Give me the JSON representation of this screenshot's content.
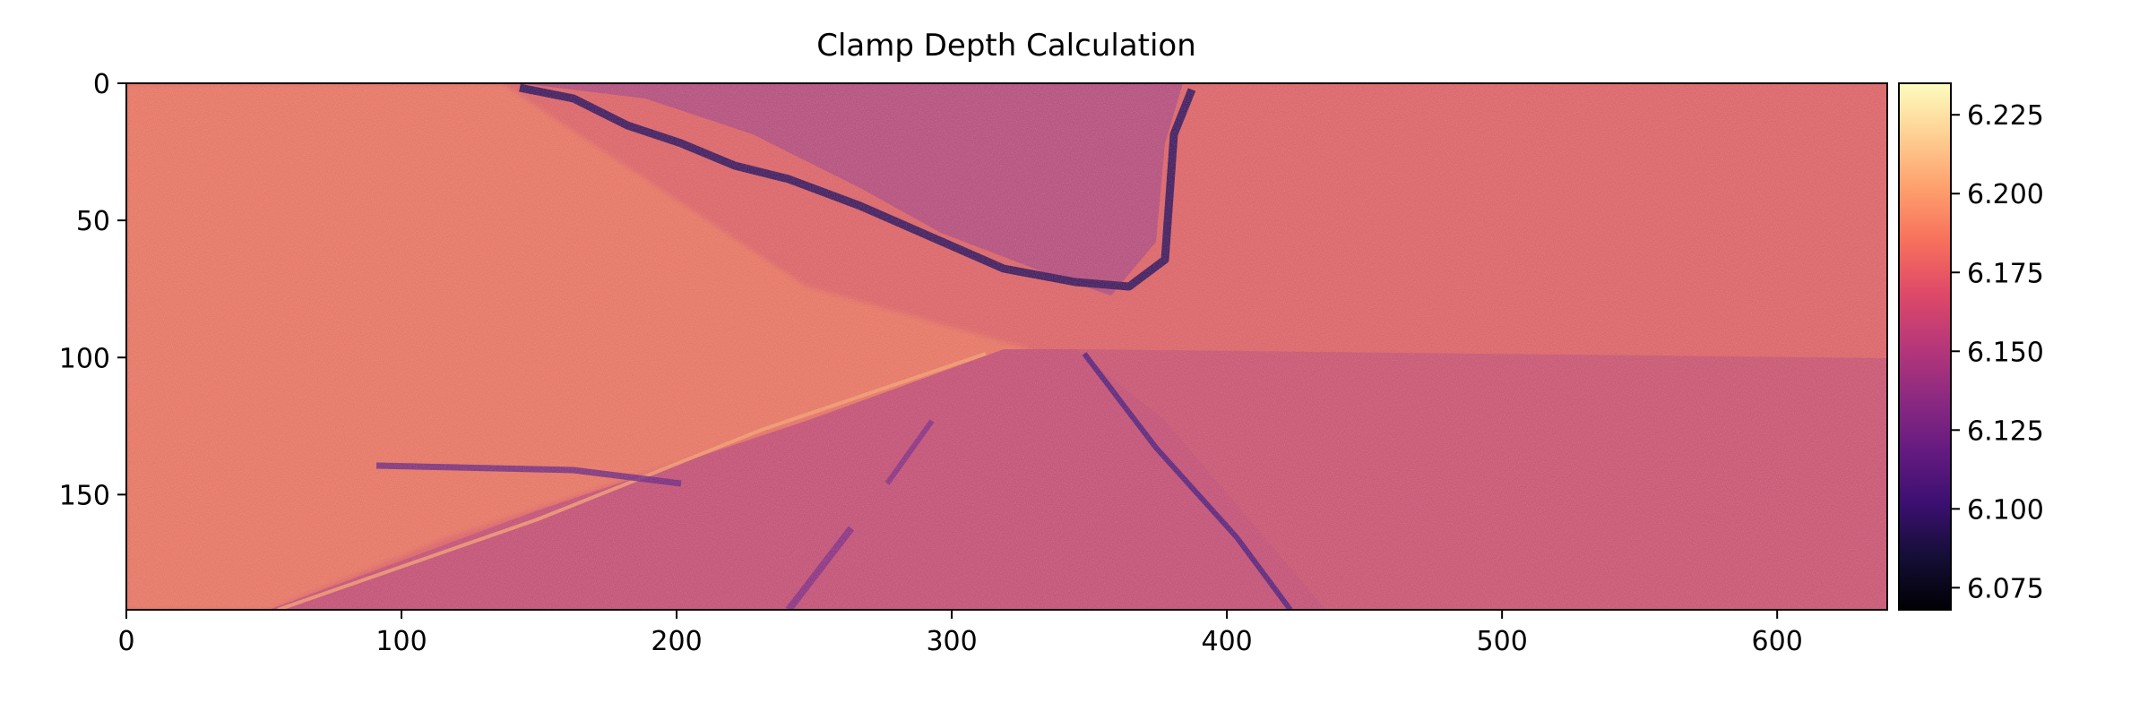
{
  "chart_data": {
    "type": "heatmap",
    "title": "Clamp Depth Calculation",
    "colormap": "magma",
    "image_width": 640,
    "image_height": 192,
    "xlim": [
      0,
      640
    ],
    "ylim": [
      192,
      0
    ],
    "xticks": [
      0,
      100,
      200,
      300,
      400,
      500,
      600
    ],
    "yticks": [
      0,
      50,
      100,
      150
    ],
    "colorbar": {
      "range": [
        6.068,
        6.235
      ],
      "ticks": [
        "6.075",
        "6.100",
        "6.125",
        "6.150",
        "6.175",
        "6.200",
        "6.225"
      ]
    },
    "typical_values": {
      "sky": 6.145,
      "road": 6.155,
      "left_embankment": 6.185,
      "vegetation": 6.165,
      "edges": 6.09
    }
  }
}
